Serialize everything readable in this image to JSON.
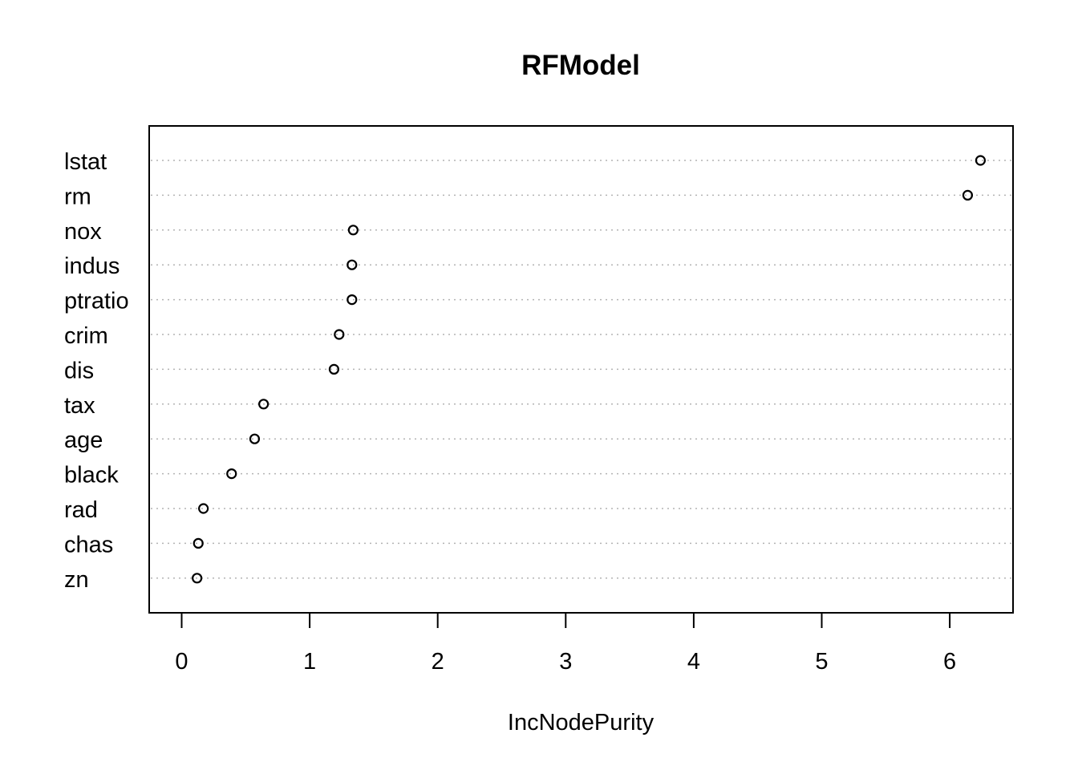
{
  "chart_data": {
    "type": "scatter",
    "title": "RFModel",
    "xlabel": "IncNodePurity",
    "ylabel": "",
    "xlim": [
      0,
      6.5
    ],
    "x_ticks": [
      0,
      1,
      2,
      3,
      4,
      5,
      6
    ],
    "grid": "horizontal-dotted",
    "categories": [
      "lstat",
      "rm",
      "nox",
      "indus",
      "ptratio",
      "crim",
      "dis",
      "tax",
      "age",
      "black",
      "rad",
      "chas",
      "zn"
    ],
    "values": [
      6.24,
      6.14,
      1.34,
      1.33,
      1.33,
      1.23,
      1.19,
      0.64,
      0.57,
      0.39,
      0.17,
      0.13,
      0.12
    ]
  }
}
